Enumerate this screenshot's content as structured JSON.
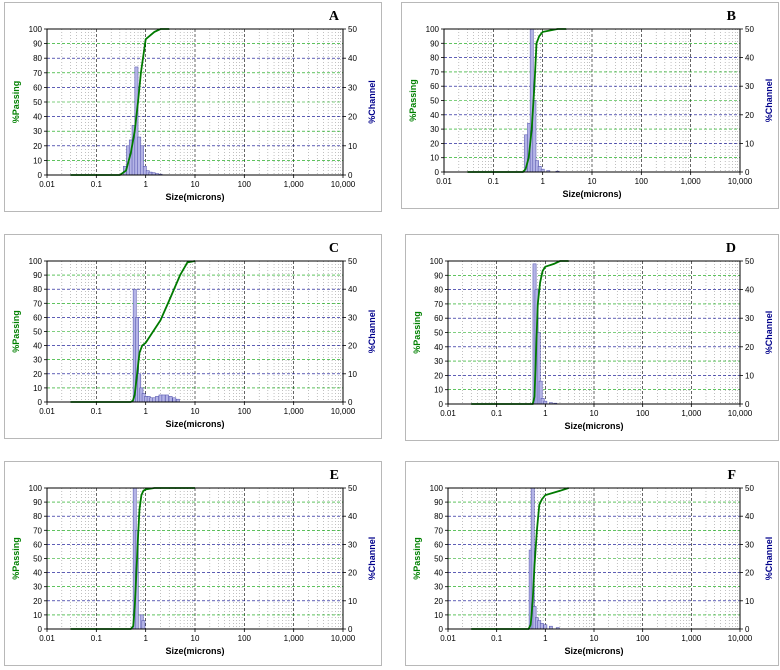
{
  "colors": {
    "passing": "#007a00",
    "channel_fill": "#b4b4e6",
    "channel_stroke": "#4b4ba8",
    "grid_green": "#00a000",
    "grid_blue": "#00008b",
    "grid_vertical": "#808080"
  },
  "chart_data": [
    {
      "panel": "A",
      "type": "bar+line",
      "xlabel": "Size(microns)",
      "ylabel_left": "%Passing",
      "ylabel_right": "%Channel",
      "x_scale": "log",
      "xlim": [
        0.01,
        10000
      ],
      "ylim_left": [
        0,
        100
      ],
      "ylim_right": [
        0,
        50
      ],
      "x_ticks": [
        "0.01",
        "0.1",
        "1",
        "10",
        "100",
        "1,000",
        "10,000"
      ],
      "y_ticks_left": [
        "0",
        "10",
        "20",
        "30",
        "40",
        "50",
        "60",
        "70",
        "80",
        "90",
        "100"
      ],
      "y_ticks_right": [
        "0",
        "10",
        "20",
        "30",
        "40",
        "50"
      ],
      "grid": true,
      "passing_series": {
        "x": [
          0.03,
          0.3,
          0.4,
          0.5,
          0.6,
          0.7,
          0.8,
          1.0,
          1.5,
          2,
          3
        ],
        "y": [
          0,
          0,
          3,
          15,
          30,
          50,
          70,
          93,
          98,
          100,
          100
        ]
      },
      "channel_series": {
        "x": [
          0.38,
          0.44,
          0.5,
          0.57,
          0.65,
          0.74,
          0.84,
          0.96,
          1.1,
          1.25,
          1.45,
          1.7,
          2.0
        ],
        "y": [
          3,
          10,
          12,
          17,
          37,
          13,
          10,
          3,
          1.5,
          1,
          0.8,
          0.5,
          0.3
        ]
      }
    },
    {
      "panel": "B",
      "type": "bar+line",
      "xlabel": "Size(microns)",
      "ylabel_left": "%Passing",
      "ylabel_right": "%Channel",
      "x_scale": "log",
      "xlim": [
        0.01,
        10000
      ],
      "ylim_left": [
        0,
        100
      ],
      "ylim_right": [
        0,
        50
      ],
      "x_ticks": [
        "0.01",
        "0.1",
        "1",
        "10",
        "100",
        "1,000",
        "10,000"
      ],
      "y_ticks_left": [
        "0",
        "10",
        "20",
        "30",
        "40",
        "50",
        "60",
        "70",
        "80",
        "90",
        "100"
      ],
      "y_ticks_right": [
        "0",
        "10",
        "20",
        "30",
        "40",
        "50"
      ],
      "grid": true,
      "passing_series": {
        "x": [
          0.03,
          0.4,
          0.45,
          0.52,
          0.6,
          0.68,
          0.75,
          0.85,
          1.0,
          2.0,
          3.0
        ],
        "y": [
          0,
          0,
          2,
          10,
          30,
          60,
          90,
          95,
          98,
          100,
          100
        ]
      },
      "channel_series": {
        "x": [
          0.46,
          0.53,
          0.6,
          0.68,
          0.77,
          0.87,
          1.0,
          1.3,
          2.0
        ],
        "y": [
          13,
          17,
          50,
          25,
          4,
          2,
          1,
          0.5,
          0.3
        ]
      }
    },
    {
      "panel": "C",
      "type": "bar+line",
      "xlabel": "Size(microns)",
      "ylabel_left": "%Passing",
      "ylabel_right": "%Channel",
      "x_scale": "log",
      "xlim": [
        0.01,
        10000
      ],
      "ylim_left": [
        0,
        100
      ],
      "ylim_right": [
        0,
        50
      ],
      "x_ticks": [
        "0.01",
        "0.1",
        "1",
        "10",
        "100",
        "1,000",
        "10,000"
      ],
      "y_ticks_left": [
        "0",
        "10",
        "20",
        "30",
        "40",
        "50",
        "60",
        "70",
        "80",
        "90",
        "100"
      ],
      "y_ticks_right": [
        "0",
        "10",
        "20",
        "30",
        "40",
        "50"
      ],
      "grid": true,
      "passing_series": {
        "x": [
          0.03,
          0.5,
          0.55,
          0.6,
          0.67,
          0.75,
          0.85,
          1.0,
          2.0,
          3.0,
          5.0,
          7.0,
          10.0
        ],
        "y": [
          0,
          0,
          1,
          5,
          20,
          35,
          40,
          42,
          58,
          72,
          90,
          99,
          100
        ]
      },
      "channel_series": {
        "x": [
          0.6,
          0.67,
          0.74,
          0.82,
          0.91,
          1.02,
          1.15,
          1.3,
          1.5,
          1.7,
          2.0,
          2.3,
          2.7,
          3.2,
          3.8,
          4.5
        ],
        "y": [
          40,
          30,
          10,
          5,
          3,
          2,
          2,
          1.5,
          1.5,
          2,
          2.5,
          2.5,
          2.5,
          2,
          1.5,
          1
        ]
      }
    },
    {
      "panel": "D",
      "type": "bar+line",
      "xlabel": "Size(microns)",
      "ylabel_left": "%Passing",
      "ylabel_right": "%Channel",
      "x_scale": "log",
      "xlim": [
        0.01,
        10000
      ],
      "ylim_left": [
        0,
        100
      ],
      "ylim_right": [
        0,
        50
      ],
      "x_ticks": [
        "0.01",
        "0.1",
        "1",
        "10",
        "100",
        "1,000",
        "10,000"
      ],
      "y_ticks_left": [
        "0",
        "10",
        "20",
        "30",
        "40",
        "50",
        "60",
        "70",
        "80",
        "90",
        "100"
      ],
      "y_ticks_right": [
        "0",
        "10",
        "20",
        "30",
        "40",
        "50"
      ],
      "grid": true,
      "passing_series": {
        "x": [
          0.03,
          0.55,
          0.6,
          0.65,
          0.7,
          0.78,
          0.88,
          1.0,
          1.5,
          2.0,
          3.0
        ],
        "y": [
          0,
          0,
          5,
          40,
          70,
          85,
          93,
          96,
          98,
          100,
          100
        ]
      },
      "channel_series": {
        "x": [
          0.6,
          0.66,
          0.73,
          0.8,
          0.88,
          1.0,
          1.3,
          1.6
        ],
        "y": [
          49,
          40,
          25,
          8,
          2,
          1,
          0.5,
          0.3
        ]
      }
    },
    {
      "panel": "E",
      "type": "bar+line",
      "xlabel": "Size(microns)",
      "ylabel_left": "%Passing",
      "ylabel_right": "%Channel",
      "x_scale": "log",
      "xlim": [
        0.01,
        10000
      ],
      "ylim_left": [
        0,
        100
      ],
      "ylim_right": [
        0,
        50
      ],
      "x_ticks": [
        "0.01",
        "0.1",
        "1",
        "10",
        "100",
        "1,000",
        "10,000"
      ],
      "y_ticks_left": [
        "0",
        "10",
        "20",
        "30",
        "40",
        "50",
        "60",
        "70",
        "80",
        "90",
        "100"
      ],
      "y_ticks_right": [
        "0",
        "10",
        "20",
        "30",
        "40",
        "50"
      ],
      "grid": true,
      "passing_series": {
        "x": [
          0.03,
          0.5,
          0.56,
          0.6,
          0.65,
          0.7,
          0.75,
          0.82,
          0.9,
          1.0,
          1.5,
          10.0
        ],
        "y": [
          0,
          0,
          2,
          15,
          40,
          65,
          85,
          95,
          98,
          99,
          100,
          100
        ]
      },
      "channel_series": {
        "x": [
          0.6,
          0.66,
          0.83,
          0.9
        ],
        "y": [
          50,
          35,
          5,
          3
        ]
      }
    },
    {
      "panel": "F",
      "type": "bar+line",
      "xlabel": "Size(microns)",
      "ylabel_left": "%Passing",
      "ylabel_right": "%Channel",
      "x_scale": "log",
      "xlim": [
        0.01,
        10000
      ],
      "ylim_left": [
        0,
        100
      ],
      "ylim_right": [
        0,
        50
      ],
      "x_ticks": [
        "0.01",
        "0.1",
        "1",
        "10",
        "100",
        "1,000",
        "10,000"
      ],
      "y_ticks_left": [
        "0",
        "10",
        "20",
        "30",
        "40",
        "50",
        "60",
        "70",
        "80",
        "90",
        "100"
      ],
      "y_ticks_right": [
        "0",
        "10",
        "20",
        "30",
        "40",
        "50"
      ],
      "grid": true,
      "passing_series": {
        "x": [
          0.03,
          0.45,
          0.5,
          0.55,
          0.6,
          0.67,
          0.75,
          0.85,
          1.0,
          2.0,
          3.0
        ],
        "y": [
          0,
          0,
          3,
          20,
          45,
          70,
          88,
          92,
          95,
          98,
          100
        ]
      },
      "channel_series": {
        "x": [
          0.5,
          0.55,
          0.6,
          0.67,
          0.75,
          0.85,
          1.0,
          1.3,
          1.8
        ],
        "y": [
          28,
          50,
          8,
          4,
          3,
          2,
          1.5,
          1,
          0.5
        ]
      }
    }
  ]
}
